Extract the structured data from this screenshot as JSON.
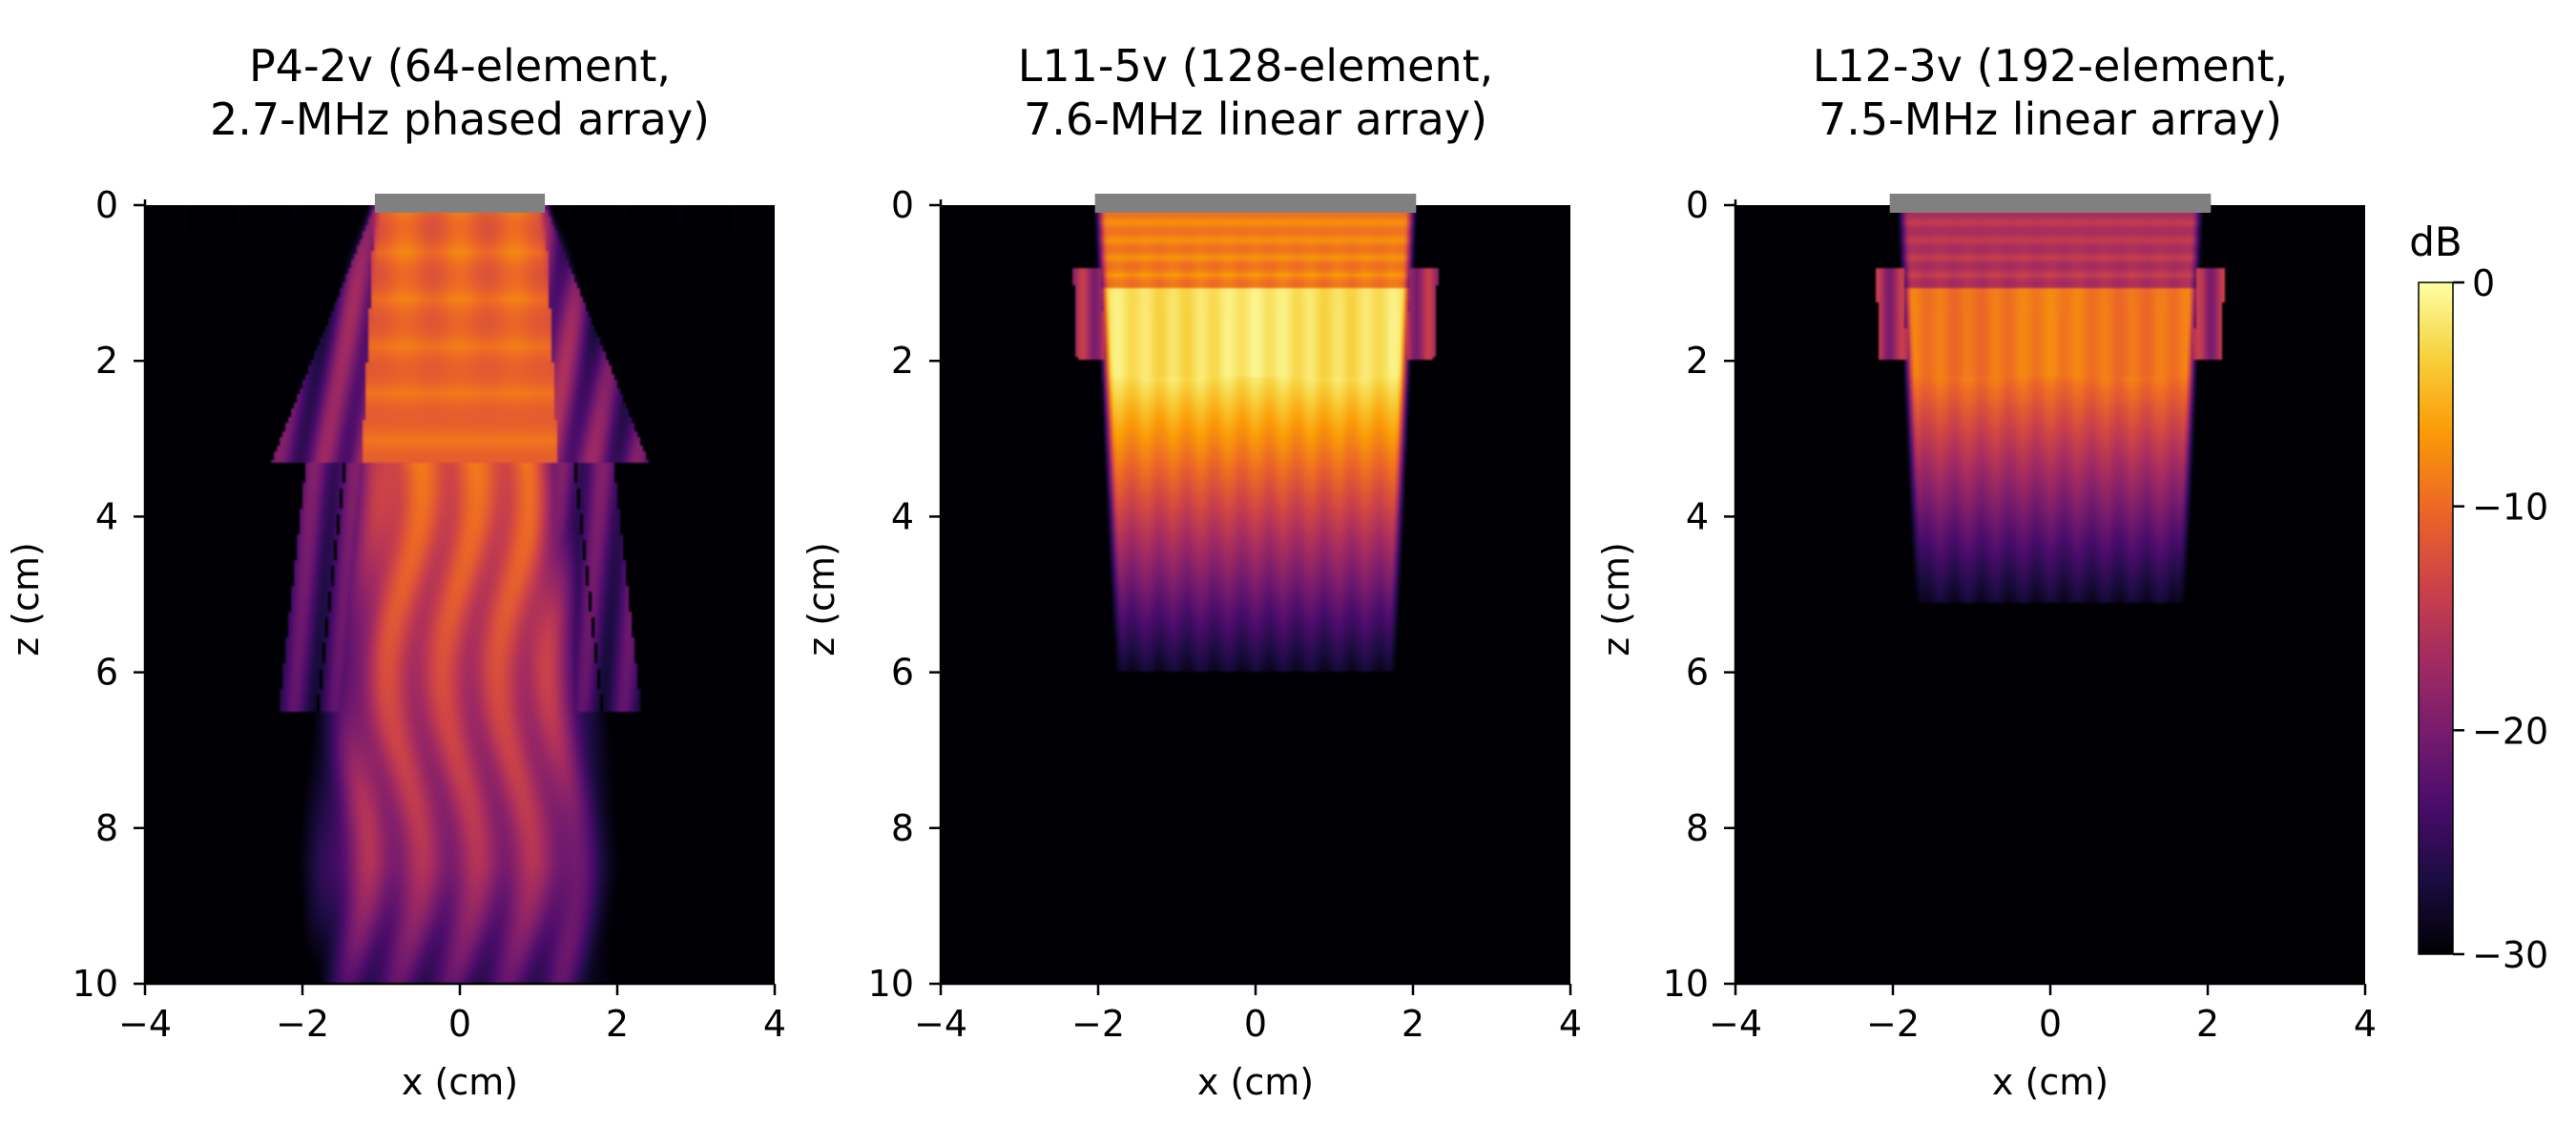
{
  "chart_data": [
    {
      "type": "heatmap",
      "title_lines": [
        "P4-2v (64-element,",
        "2.7-MHz phased array)"
      ],
      "probe": "P4-2v",
      "elements": 64,
      "center_frequency_mhz": 2.7,
      "array_type": "phased",
      "xlabel": "x (cm)",
      "ylabel": "z (cm)",
      "xlim": [
        -4,
        4
      ],
      "ylim": [
        10,
        0
      ],
      "xticks": [
        -4,
        -2,
        0,
        2,
        4
      ],
      "yticks": [
        0,
        2,
        4,
        6,
        8,
        10
      ],
      "aperture_cm": [
        -1.08,
        1.08
      ],
      "field": "diverging beam: aperture half-width 1.08 cm at z=0, near-field -8 to -12 dB with interference fringes to z~3 cm, side lobes diverging to |x|~2.2 cm, main beam -10 to -16 dB at z 3-6 cm, ~-23 dB at z=10"
    },
    {
      "type": "heatmap",
      "title_lines": [
        "L11-5v (128-element,",
        "7.6-MHz linear array)"
      ],
      "probe": "L11-5v",
      "elements": 128,
      "center_frequency_mhz": 7.6,
      "array_type": "linear",
      "xlabel": "x (cm)",
      "ylabel": "z (cm)",
      "xlim": [
        -4,
        4
      ],
      "ylim": [
        10,
        0
      ],
      "xticks": [
        -4,
        -2,
        0,
        2,
        4
      ],
      "yticks": [
        0,
        2,
        4,
        6,
        8,
        10
      ],
      "aperture_cm": [
        -2.04,
        2.04
      ],
      "field": "collimated field between |x|~2 cm, peak ~-2 dB near z 1-2 cm, fading to -30 dB by z~6 cm"
    },
    {
      "type": "heatmap",
      "title_lines": [
        "L12-3v (192-element,",
        "7.5-MHz linear array)"
      ],
      "probe": "L12-3v",
      "elements": 192,
      "center_frequency_mhz": 7.5,
      "array_type": "linear",
      "xlabel": "x (cm)",
      "ylabel": "z (cm)",
      "xlim": [
        -4,
        4
      ],
      "ylim": [
        10,
        0
      ],
      "xticks": [
        -4,
        -2,
        0,
        2,
        4
      ],
      "yticks": [
        0,
        2,
        4,
        6,
        8,
        10
      ],
      "aperture_cm": [
        -2.04,
        2.04
      ],
      "field": "collimated field between |x|~1.9 cm, ~-9 dB near z 1-2 cm, fading to -30 dB by z~5 cm"
    }
  ],
  "colorbar": {
    "label": "dB",
    "ticks": [
      0,
      -10,
      -20,
      -30
    ],
    "tick_labels": [
      "0",
      "−10",
      "−20",
      "−30"
    ],
    "range": [
      -30,
      0
    ],
    "colormap": "inferno",
    "stops": [
      "#000004",
      "#1b0c41",
      "#4a0c6b",
      "#781c6d",
      "#a52c60",
      "#cf4446",
      "#ed6925",
      "#fb9b06",
      "#f7d13d",
      "#fcffa4"
    ]
  },
  "colors": {
    "probe_bar": "#808080",
    "background": "#000004"
  }
}
